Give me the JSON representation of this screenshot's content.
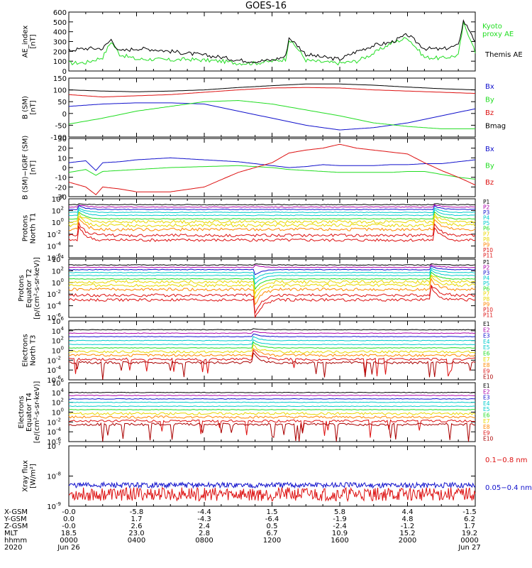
{
  "title": "GOES-16",
  "colors": {
    "black": "#000000",
    "green": "#22dd22",
    "red": "#dd1111",
    "blue": "#1111cc",
    "purple": "#aa00aa",
    "cyan": "#00cccc",
    "yellow": "#e8d800",
    "orange": "#ff8800",
    "darkred": "#aa0000"
  },
  "chart_data": [
    {
      "type": "line",
      "ylabel": "AE_index\n[nT]",
      "ylim": [
        0,
        600
      ],
      "yticks": [
        "600",
        "500",
        "400",
        "300",
        "200",
        "100",
        "0"
      ],
      "ytickvals": [
        600,
        500,
        400,
        300,
        200,
        100,
        0
      ],
      "x": [
        0,
        1,
        2,
        2.5,
        3,
        4,
        5,
        6,
        7,
        8,
        9,
        10,
        11,
        12,
        12.8,
        13,
        13.5,
        14,
        15,
        16,
        17,
        18,
        19,
        20,
        21,
        22,
        23,
        23.3,
        23.8,
        24
      ],
      "series": [
        {
          "name": "Kyoto proxy AE",
          "color": "#22dd22",
          "values": [
            80,
            85,
            140,
            300,
            170,
            120,
            120,
            110,
            120,
            110,
            100,
            80,
            80,
            100,
            120,
            320,
            230,
            110,
            90,
            80,
            100,
            180,
            280,
            340,
            140,
            130,
            160,
            480,
            300,
            180
          ]
        },
        {
          "name": "Themis AE",
          "color": "#000000",
          "values": [
            210,
            230,
            230,
            320,
            200,
            230,
            220,
            200,
            180,
            160,
            140,
            110,
            100,
            110,
            150,
            340,
            260,
            170,
            140,
            120,
            200,
            260,
            290,
            370,
            230,
            220,
            260,
            510,
            380,
            280
          ]
        }
      ],
      "legend": [
        "Kyoto proxy AE",
        "Themis AE"
      ]
    },
    {
      "type": "line",
      "ylabel": "B (SM)\n[nT]",
      "ylim": [
        -100,
        150
      ],
      "yticks": [
        "150",
        "100",
        "50",
        "0",
        "-50",
        "-100"
      ],
      "ytickvals": [
        150,
        100,
        50,
        0,
        -50,
        -100
      ],
      "x": [
        0,
        2,
        4,
        6,
        8,
        10,
        12,
        14,
        16,
        18,
        20,
        22,
        24
      ],
      "series": [
        {
          "name": "Bx",
          "color": "#1111cc",
          "values": [
            30,
            40,
            45,
            45,
            40,
            10,
            -20,
            -50,
            -70,
            -60,
            -40,
            -10,
            20
          ]
        },
        {
          "name": "By",
          "color": "#22dd22",
          "values": [
            -45,
            -20,
            10,
            30,
            50,
            55,
            40,
            15,
            -10,
            -40,
            -55,
            -65,
            -65
          ]
        },
        {
          "name": "Bz",
          "color": "#dd1111",
          "values": [
            80,
            70,
            75,
            80,
            90,
            100,
            108,
            110,
            108,
            100,
            95,
            90,
            85
          ]
        },
        {
          "name": "Bmag",
          "color": "#000000",
          "values": [
            100,
            95,
            92,
            95,
            100,
            110,
            118,
            125,
            125,
            120,
            112,
            105,
            100
          ]
        }
      ],
      "legend": [
        "Bx",
        "By",
        "Bz",
        "Bmag"
      ]
    },
    {
      "type": "line",
      "ylabel": "B (SM)−IGRF (SM)\n[nT]",
      "ylim": [
        -30,
        30
      ],
      "yticks": [
        "30",
        "20",
        "10",
        "0",
        "-10",
        "-20",
        "-30"
      ],
      "ytickvals": [
        30,
        20,
        10,
        0,
        -10,
        -20,
        -30
      ],
      "x": [
        0,
        1,
        1.6,
        2,
        3,
        4,
        6,
        8,
        10,
        12,
        13,
        14,
        15,
        16,
        17,
        18,
        19,
        20,
        21,
        22,
        23,
        24
      ],
      "series": [
        {
          "name": "Bx",
          "color": "#1111cc",
          "values": [
            5,
            7,
            -3,
            5,
            6,
            8,
            10,
            8,
            6,
            2,
            0,
            1,
            3,
            2,
            2,
            2,
            3,
            3,
            4,
            4,
            6,
            8
          ]
        },
        {
          "name": "By",
          "color": "#22dd22",
          "values": [
            -5,
            -2,
            -8,
            -4,
            -3,
            -2,
            0,
            1,
            2,
            0,
            -2,
            -3,
            -4,
            -5,
            -5,
            -5,
            -5,
            -4,
            -4,
            -7,
            -10,
            -12
          ]
        },
        {
          "name": "Bz",
          "color": "#dd1111",
          "values": [
            -15,
            -20,
            -28,
            -20,
            -22,
            -25,
            -25,
            -20,
            -5,
            5,
            15,
            18,
            20,
            24,
            20,
            18,
            16,
            14,
            5,
            -3,
            -10,
            -18
          ]
        }
      ],
      "legend": [
        "Bx",
        "By",
        "Bz"
      ]
    },
    {
      "type": "line",
      "ylabel": "Protons\nNorth T1",
      "ylog": true,
      "ylim": [
        -6,
        4
      ],
      "yticks": [
        "10^4",
        "10^2",
        "10^0",
        "10^-2",
        "10^-4",
        "10^-6"
      ],
      "ytickvals": [
        4,
        2,
        0,
        -2,
        -4,
        -6
      ],
      "legend": [
        "P1",
        "P2",
        "P3",
        "P4",
        "P5",
        "P6",
        "P7",
        "P8",
        "P9",
        "P10",
        "P11"
      ],
      "legend_colors": [
        "#000000",
        "#aa00aa",
        "#1111cc",
        "#00cccc",
        "#00cccc",
        "#22dd22",
        "#e8d800",
        "#e8d800",
        "#ff8800",
        "#dd1111",
        "#dd1111"
      ],
      "levels": [
        3.0,
        2.6,
        2.2,
        1.7,
        1.2,
        0.6,
        0.1,
        -0.5,
        -1.2,
        -2.2,
        -3.0
      ],
      "events": [
        [
          0.5,
          "spike"
        ],
        [
          21.5,
          "spike"
        ]
      ]
    },
    {
      "type": "line",
      "ylabel": "Protons\nEquator T2\n[p/(cm²-s-sr-keV)]",
      "ylog": true,
      "ylim": [
        -6,
        4
      ],
      "yticks": [
        "10^4",
        "10^2",
        "10^0",
        "10^-2",
        "10^-4",
        "10^-6"
      ],
      "ytickvals": [
        4,
        2,
        0,
        -2,
        -4,
        -6
      ],
      "legend": [
        "P1",
        "P2",
        "P3",
        "P4",
        "P5",
        "P6",
        "P7",
        "P8",
        "P9",
        "P10",
        "P11"
      ],
      "legend_colors": [
        "#000000",
        "#aa00aa",
        "#1111cc",
        "#00cccc",
        "#00cccc",
        "#22dd22",
        "#e8d800",
        "#e8d800",
        "#ff8800",
        "#dd1111",
        "#dd1111"
      ],
      "levels": [
        3.0,
        2.6,
        2.2,
        1.7,
        1.2,
        0.6,
        0.1,
        -0.5,
        -1.2,
        -2.2,
        -3.0
      ],
      "events": [
        [
          10.9,
          "drop"
        ],
        [
          21.3,
          "spike"
        ]
      ]
    },
    {
      "type": "line",
      "ylabel": "Electrons\nNorth T3",
      "ylog": true,
      "ylim": [
        -6,
        6
      ],
      "yticks": [
        "10^6",
        "10^4",
        "10^2",
        "10^0",
        "10^-2",
        "10^-4",
        "10^-6"
      ],
      "ytickvals": [
        6,
        4,
        2,
        0,
        -2,
        -4,
        -6
      ],
      "legend": [
        "E1",
        "E2",
        "E3",
        "E4",
        "E5",
        "E6",
        "E7",
        "E8",
        "E9",
        "E10"
      ],
      "legend_colors": [
        "#000000",
        "#aa00aa",
        "#1111cc",
        "#00cccc",
        "#00cccc",
        "#22dd22",
        "#e8d800",
        "#ff8800",
        "#dd1111",
        "#aa0000"
      ],
      "levels": [
        4.2,
        3.5,
        2.8,
        2.0,
        1.2,
        0.5,
        -0.3,
        -1.0,
        -1.8,
        -2.5
      ],
      "events": [
        [
          10.8,
          "spike"
        ]
      ]
    },
    {
      "type": "line",
      "ylabel": "Electrons\nEquator T4\n[e/(cm²-s-sr-keV)]",
      "ylog": true,
      "ylim": [
        -6,
        6
      ],
      "yticks": [
        "10^6",
        "10^4",
        "10^2",
        "10^0",
        "10^-2",
        "10^-4",
        "10^-6"
      ],
      "ytickvals": [
        6,
        4,
        2,
        0,
        -2,
        -4,
        -6
      ],
      "legend": [
        "E1",
        "E2",
        "E3",
        "E4",
        "E5",
        "E6",
        "E7",
        "E8",
        "E9",
        "E10"
      ],
      "legend_colors": [
        "#000000",
        "#aa00aa",
        "#1111cc",
        "#00cccc",
        "#00cccc",
        "#22dd22",
        "#e8d800",
        "#ff8800",
        "#dd1111",
        "#aa0000"
      ],
      "levels": [
        4.0,
        3.4,
        2.7,
        2.0,
        1.2,
        0.5,
        -0.3,
        -1.0,
        -1.8,
        -2.5
      ],
      "events": []
    },
    {
      "type": "line",
      "ylabel": "Xray flux\n[W/m²]",
      "ylog": true,
      "ylim": [
        -9,
        -7
      ],
      "yticks": [
        "10^-7",
        "10^-8",
        "10^-9"
      ],
      "ytickvals": [
        -7,
        -8,
        -9
      ],
      "series": [
        {
          "name": "0.1–0.8 nm",
          "color": "#dd1111",
          "level": -8.6
        },
        {
          "name": "0.05–0.4 nm",
          "color": "#1111cc",
          "level": -8.3
        }
      ],
      "legend": [
        "0.1−0.8 nm",
        "0.05−0.4 nm"
      ]
    }
  ],
  "x_axis": {
    "xlim": [
      0,
      24
    ],
    "row_labels": [
      "X-GSM",
      "Y-GSM",
      "Z-GSM",
      "MLT",
      "hhmm",
      "2020"
    ],
    "ticks": [
      {
        "t": 0,
        "vals": [
          "-0.0",
          "0.0",
          "-0.0",
          "18.5",
          "0000",
          "Jun 26"
        ]
      },
      {
        "t": 4,
        "vals": [
          "-5.8",
          "1.7",
          "2.6",
          "23.0",
          "0400",
          ""
        ]
      },
      {
        "t": 8,
        "vals": [
          "-4.4",
          "-4.3",
          "2.4",
          "2.8",
          "0800",
          ""
        ]
      },
      {
        "t": 12,
        "vals": [
          "1.5",
          "-6.4",
          "0.5",
          "6.7",
          "1200",
          ""
        ]
      },
      {
        "t": 16,
        "vals": [
          "5.8",
          "-1.9",
          "-2.4",
          "10.9",
          "1600",
          ""
        ]
      },
      {
        "t": 20,
        "vals": [
          "4.4",
          "4.8",
          "-1.2",
          "15.2",
          "2000",
          ""
        ]
      },
      {
        "t": 24,
        "vals": [
          "-1.5",
          "6.2",
          "1.7",
          "19.2",
          "0000",
          "Jun 27"
        ]
      }
    ]
  }
}
